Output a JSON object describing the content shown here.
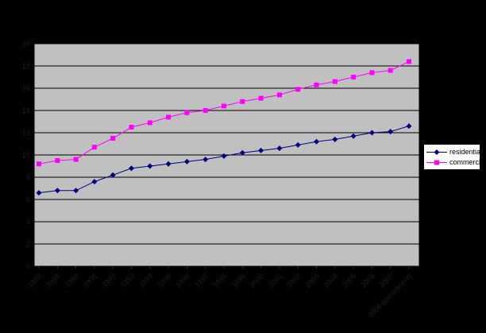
{
  "chart_data": {
    "type": "line",
    "title": "",
    "x": [
      "1988",
      "1989",
      "1990",
      "1991",
      "1992",
      "1993",
      "1994",
      "1995",
      "1996",
      "1997",
      "1998",
      "1999",
      "2000",
      "2001",
      "2002",
      "2003",
      "2004",
      "2005",
      "2006",
      "2007",
      "2008 (jan-present)"
    ],
    "series": [
      {
        "name": "residential",
        "color": "#000080",
        "marker": "diamond",
        "values": [
          6.6,
          6.8,
          6.8,
          7.6,
          8.2,
          8.8,
          9.0,
          9.2,
          9.4,
          9.6,
          9.9,
          10.2,
          10.4,
          10.6,
          10.9,
          11.2,
          11.4,
          11.7,
          12.0,
          12.1,
          12.6
        ]
      },
      {
        "name": "commercial",
        "color": "#FF00FF",
        "marker": "square",
        "values": [
          9.2,
          9.5,
          9.6,
          10.7,
          11.5,
          12.5,
          12.9,
          13.4,
          13.8,
          14.0,
          14.4,
          14.8,
          15.1,
          15.4,
          15.9,
          16.3,
          16.6,
          17.0,
          17.4,
          17.6,
          18.4
        ]
      }
    ],
    "xlabel": "",
    "ylabel": "",
    "ylim": [
      0,
      20
    ],
    "ytick_step": 2,
    "ytick_labels": [
      "0",
      "2",
      "4",
      "6",
      "8",
      "10",
      "12",
      "14",
      "16",
      "18",
      "20"
    ],
    "grid": true,
    "legend_position": "right",
    "colors": {
      "outer_background": "#000000",
      "plot_background": "#c0c0c0",
      "gridline": "#000000",
      "axis_text": "#1e1e1e",
      "tick_mark": "#333333",
      "legend_background": "#ffffff",
      "legend_border": "#000000",
      "legend_text": "#000000"
    }
  }
}
